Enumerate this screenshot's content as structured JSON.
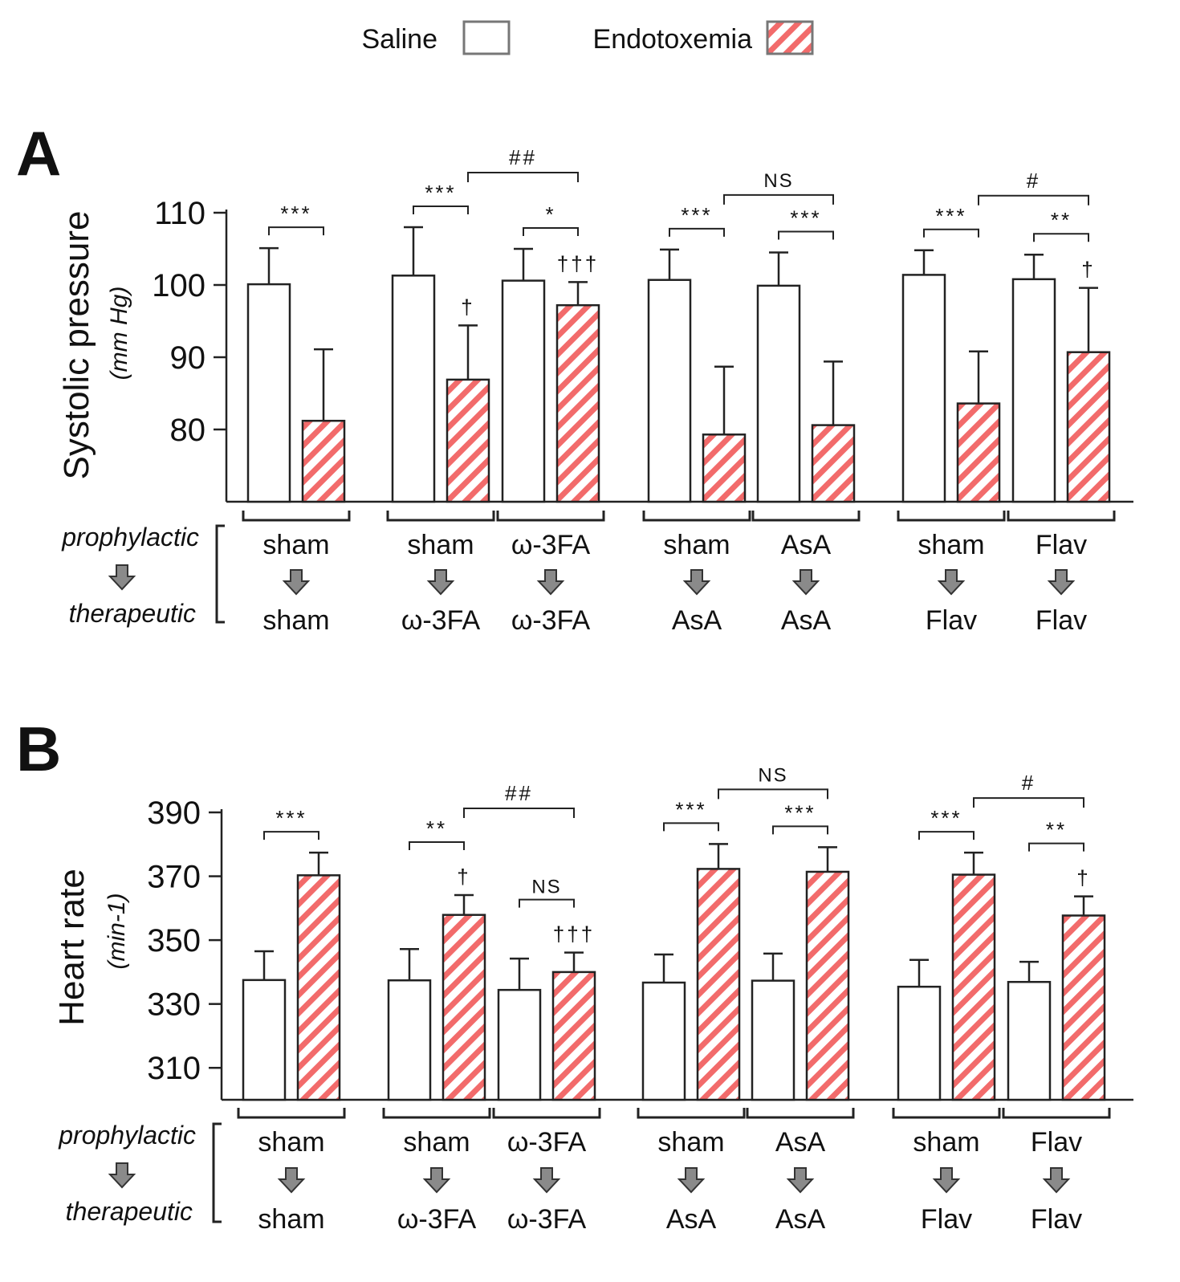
{
  "legend": {
    "saline_label": "Saline",
    "endotoxemia_label": "Endotoxemia",
    "saline_color": "#ffffff",
    "endotoxemia_color": "#f26b6b"
  },
  "side_labels": {
    "prophylactic": "prophylactic",
    "therapeutic": "therapeutic",
    "arrow_icon": "down-arrow-icon"
  },
  "chart_data": [
    {
      "type": "bar",
      "panel_label": "A",
      "ylabel": "Systolic pressure",
      "yunit": "(mm Hg)",
      "ylim": [
        70,
        110
      ],
      "yticks": [
        80,
        90,
        100,
        110
      ],
      "series": [
        {
          "name": "Saline",
          "values": [
            100.1,
            101.3,
            100.6,
            100.7,
            99.9,
            101.4,
            100.8
          ]
        },
        {
          "name": "Endotoxemia",
          "values": [
            81.2,
            86.9,
            97.2,
            79.3,
            80.6,
            83.6,
            90.7
          ]
        }
      ],
      "errors": {
        "Saline": [
          5.0,
          6.7,
          4.4,
          4.2,
          4.6,
          3.4,
          3.4
        ],
        "Endotoxemia": [
          9.9,
          7.5,
          3.2,
          9.4,
          8.8,
          7.2,
          8.9
        ]
      },
      "groups": [
        {
          "prophylactic": "sham",
          "therapeutic": "sham",
          "sig": "***",
          "dagger": ""
        },
        {
          "prophylactic": "sham",
          "therapeutic": "ω-3FA",
          "sig": "***",
          "dagger": "†"
        },
        {
          "prophylactic": "ω-3FA",
          "therapeutic": "ω-3FA",
          "sig": "*",
          "dagger": "†††"
        },
        {
          "prophylactic": "sham",
          "therapeutic": "AsA",
          "sig": "***",
          "dagger": ""
        },
        {
          "prophylactic": "AsA",
          "therapeutic": "AsA",
          "sig": "***",
          "dagger": ""
        },
        {
          "prophylactic": "sham",
          "therapeutic": "Flav",
          "sig": "***",
          "dagger": ""
        },
        {
          "prophylactic": "Flav",
          "therapeutic": "Flav",
          "sig": "**",
          "dagger": "†"
        }
      ],
      "between": [
        {
          "from": 1,
          "to": 2,
          "label": "##"
        },
        {
          "from": 3,
          "to": 4,
          "label": "NS"
        },
        {
          "from": 5,
          "to": 6,
          "label": "#"
        }
      ]
    },
    {
      "type": "bar",
      "panel_label": "B",
      "ylabel": "Heart rate",
      "yunit": "(min-1)",
      "ylim": [
        300,
        390
      ],
      "yticks": [
        310,
        330,
        350,
        370,
        390
      ],
      "series": [
        {
          "name": "Saline",
          "values": [
            337.5,
            337.4,
            334.4,
            336.7,
            337.3,
            335.4,
            336.9
          ]
        },
        {
          "name": "Endotoxemia",
          "values": [
            370.3,
            357.9,
            340.0,
            372.3,
            371.4,
            370.5,
            357.7
          ]
        }
      ],
      "errors": {
        "Saline": [
          9.0,
          9.8,
          9.8,
          8.8,
          8.5,
          8.4,
          6.3
        ],
        "Endotoxemia": [
          7.1,
          6.2,
          6.1,
          7.8,
          7.7,
          6.9,
          6.0
        ]
      },
      "groups": [
        {
          "prophylactic": "sham",
          "therapeutic": "sham",
          "sig": "***",
          "dagger": ""
        },
        {
          "prophylactic": "sham",
          "therapeutic": "ω-3FA",
          "sig": "**",
          "dagger": "†"
        },
        {
          "prophylactic": "ω-3FA",
          "therapeutic": "ω-3FA",
          "sig": "NS",
          "dagger": "†††"
        },
        {
          "prophylactic": "sham",
          "therapeutic": "AsA",
          "sig": "***",
          "dagger": ""
        },
        {
          "prophylactic": "AsA",
          "therapeutic": "AsA",
          "sig": "***",
          "dagger": ""
        },
        {
          "prophylactic": "sham",
          "therapeutic": "Flav",
          "sig": "***",
          "dagger": ""
        },
        {
          "prophylactic": "Flav",
          "therapeutic": "Flav",
          "sig": "**",
          "dagger": "†"
        }
      ],
      "between": [
        {
          "from": 1,
          "to": 2,
          "label": "##"
        },
        {
          "from": 3,
          "to": 4,
          "label": "NS"
        },
        {
          "from": 5,
          "to": 6,
          "label": "#"
        }
      ]
    }
  ]
}
